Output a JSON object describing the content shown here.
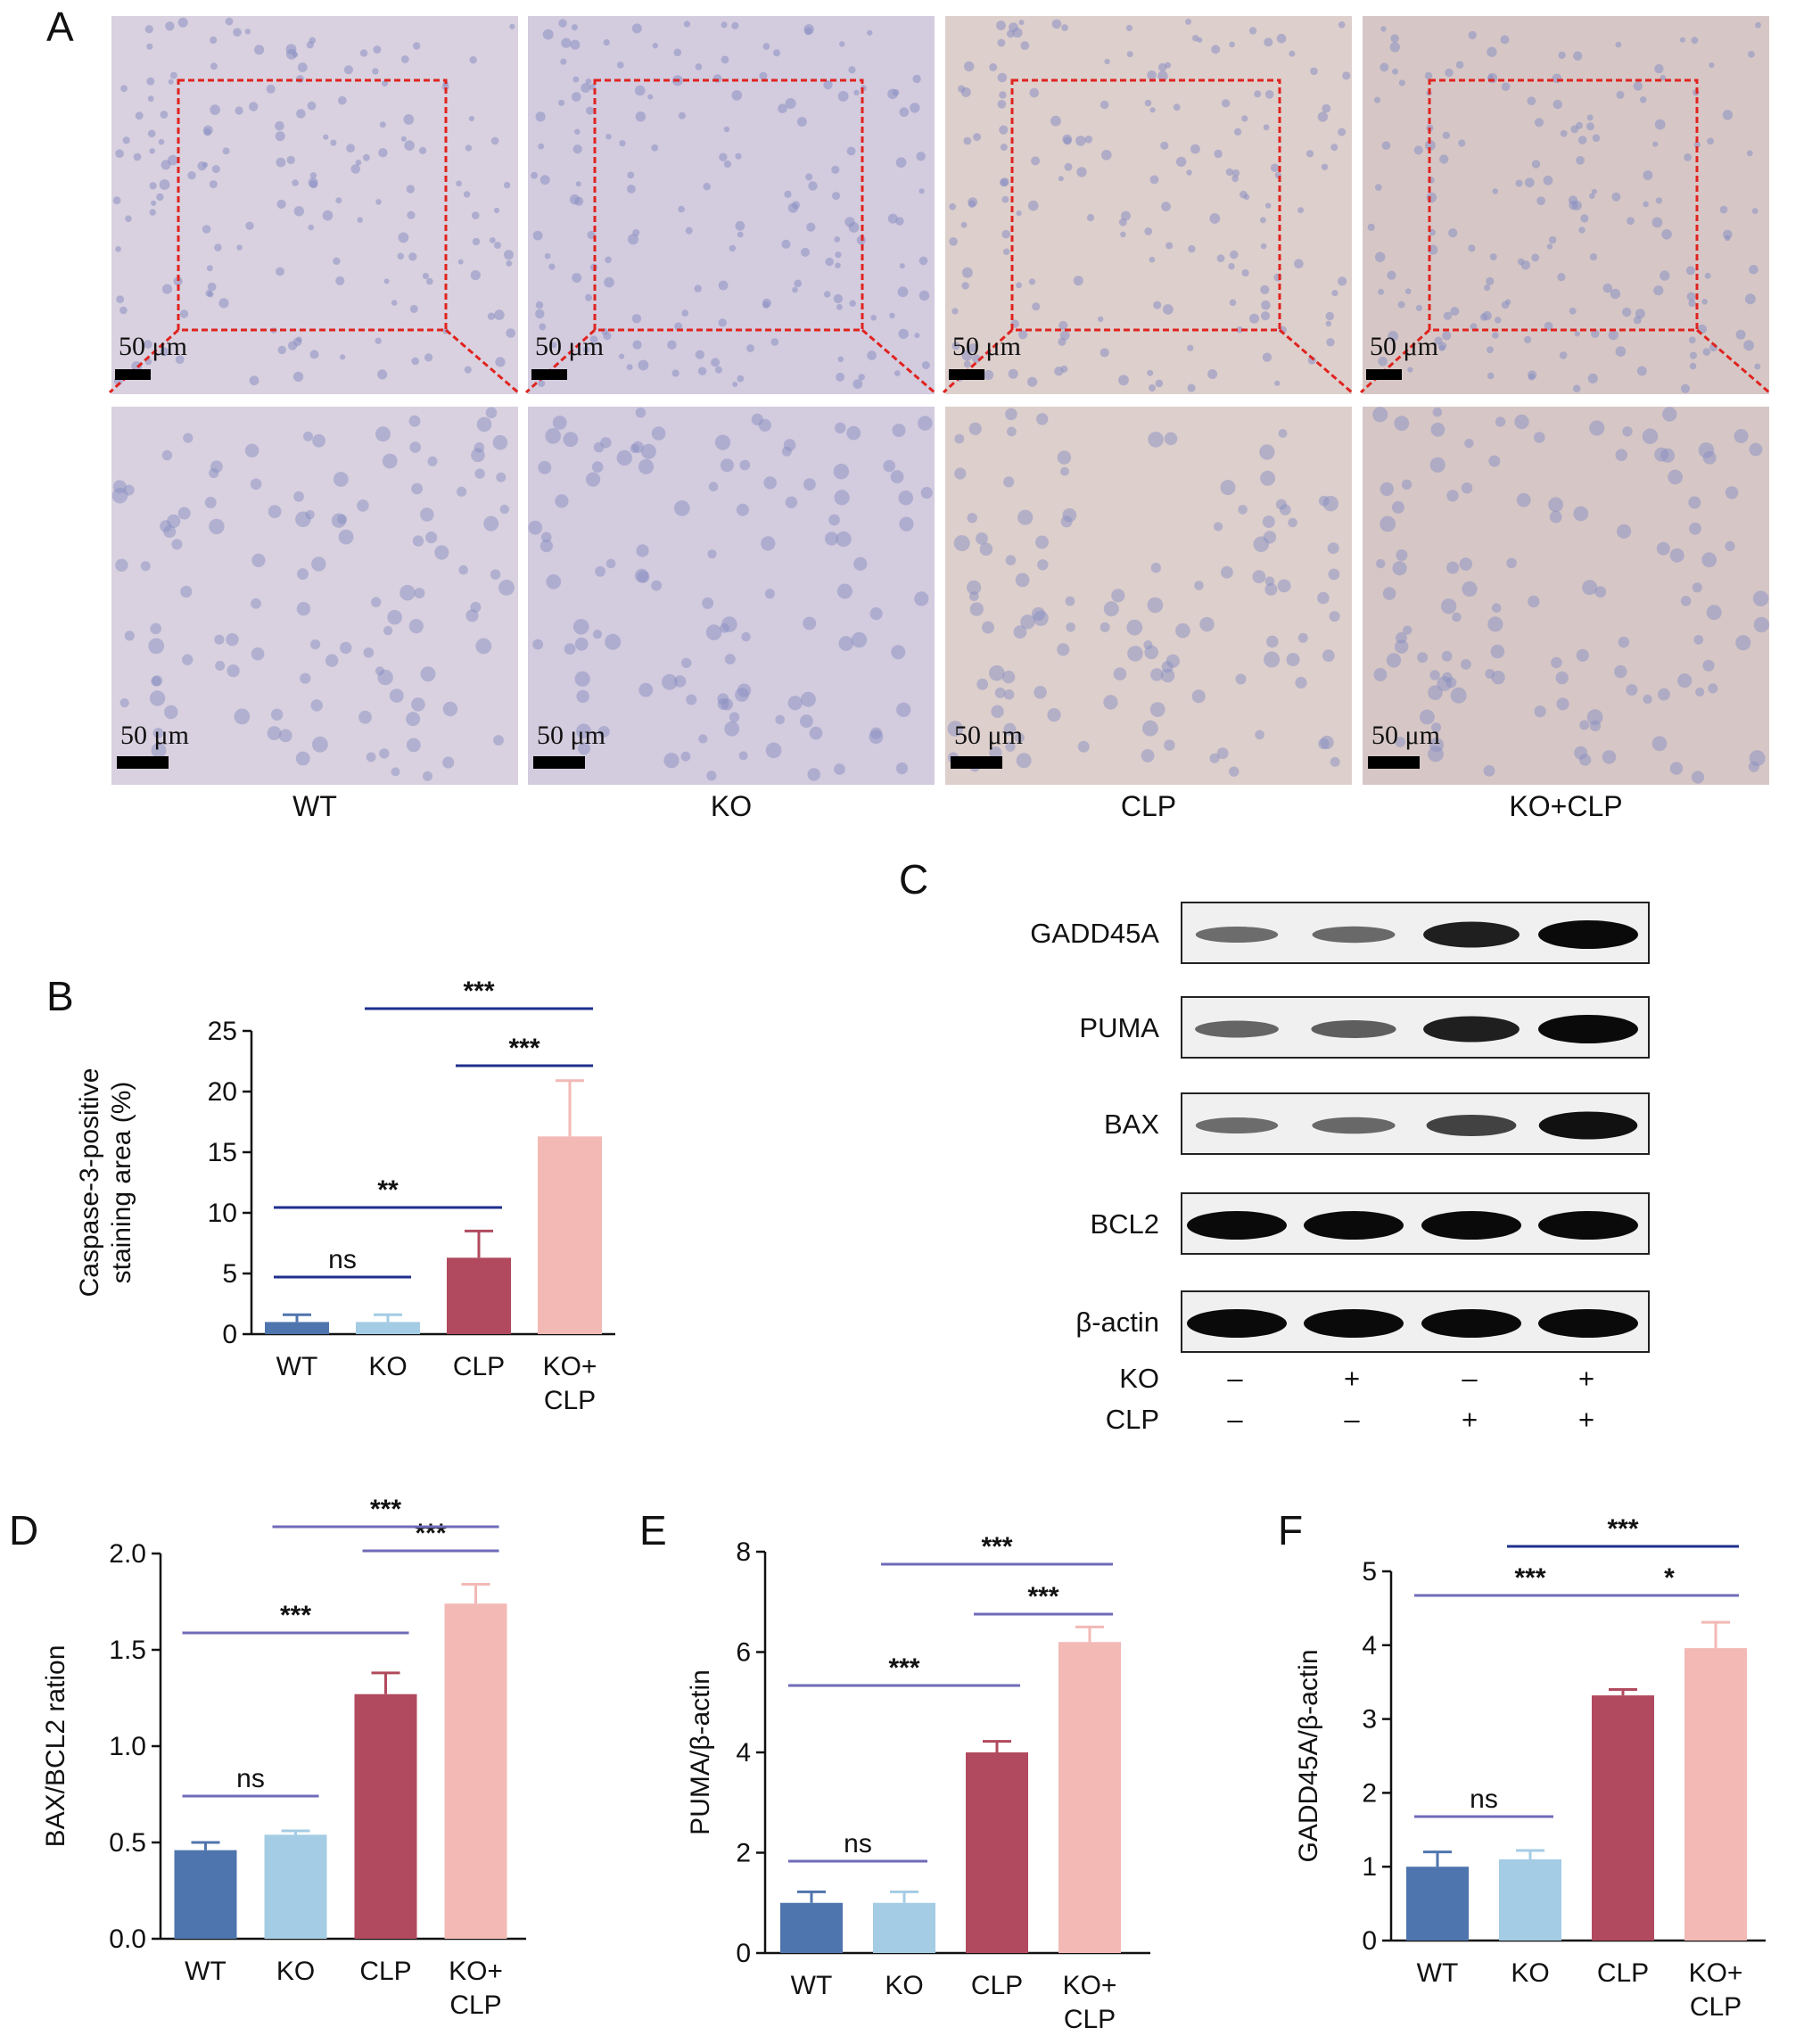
{
  "panel_a": {
    "label": "A",
    "scale_bar_text": "50 μm",
    "groups": [
      "WT",
      "KO",
      "CLP",
      "KO+CLP"
    ],
    "tissue_colors": [
      "#d9d1df",
      "#d3cbde",
      "#ddcfcc",
      "#d6c7c6"
    ]
  },
  "panel_c": {
    "label": "C",
    "rows": [
      {
        "name": "GADD45A",
        "intensity": [
          0.3,
          0.32,
          0.85,
          1.0
        ]
      },
      {
        "name": "PUMA",
        "intensity": [
          0.35,
          0.4,
          0.85,
          1.0
        ]
      },
      {
        "name": "BAX",
        "intensity": [
          0.3,
          0.33,
          0.6,
          0.95
        ]
      },
      {
        "name": "BCL2",
        "intensity": [
          1.0,
          1.0,
          1.0,
          1.0
        ]
      },
      {
        "name": "β-actin",
        "intensity": [
          1.0,
          1.0,
          1.0,
          1.0
        ]
      }
    ],
    "conditions": [
      {
        "name": "KO",
        "values": [
          "–",
          "+",
          "–",
          "+"
        ]
      },
      {
        "name": "CLP",
        "values": [
          "–",
          "–",
          "+",
          "+"
        ]
      }
    ]
  },
  "chart_data": [
    {
      "panel": "B",
      "type": "bar",
      "categories": [
        "WT",
        "KO",
        "CLP",
        "KO+\nCLP"
      ],
      "values": [
        1.0,
        1.0,
        6.3,
        16.3
      ],
      "errors": [
        0.6,
        0.6,
        2.2,
        4.6
      ],
      "ylabel": "Caspase-3-positive\nstaining area (%)",
      "ylim": [
        0,
        25
      ],
      "yticks": [
        "0",
        "5",
        "10",
        "15",
        "20",
        "25"
      ],
      "colors": [
        "#4f75ae",
        "#a4cce4",
        "#b14a5e",
        "#f2b9b5"
      ],
      "comparisons": [
        {
          "from": 0,
          "to": 1,
          "text": "ns"
        },
        {
          "from": 0,
          "to": 2,
          "text": "**"
        },
        {
          "from": 2,
          "to": 3,
          "text": "***"
        },
        {
          "from": 1,
          "to": 3,
          "text": "***"
        }
      ]
    },
    {
      "panel": "D",
      "type": "bar",
      "categories": [
        "WT",
        "KO",
        "CLP",
        "KO+\nCLP"
      ],
      "values": [
        0.46,
        0.54,
        1.27,
        1.74
      ],
      "errors": [
        0.04,
        0.02,
        0.11,
        0.1
      ],
      "ylabel": "BAX/BCL2 ration",
      "ylim": [
        0,
        2.0
      ],
      "yticks": [
        "0.0",
        "0.5",
        "1.0",
        "1.5",
        "2.0"
      ],
      "colors": [
        "#4f75ae",
        "#a4cce4",
        "#b14a5e",
        "#f2b9b5"
      ],
      "comparisons": [
        {
          "from": 0,
          "to": 1,
          "text": "ns"
        },
        {
          "from": 0,
          "to": 2,
          "text": "***"
        },
        {
          "from": 2,
          "to": 3,
          "text": "***"
        },
        {
          "from": 1,
          "to": 3,
          "text": "***"
        }
      ]
    },
    {
      "panel": "E",
      "type": "bar",
      "categories": [
        "WT",
        "KO",
        "CLP",
        "KO+\nCLP"
      ],
      "values": [
        1.0,
        1.0,
        4.0,
        6.2
      ],
      "errors": [
        0.22,
        0.22,
        0.22,
        0.3
      ],
      "ylabel": "PUMA/β-actin",
      "ylim": [
        0,
        8
      ],
      "yticks": [
        "0",
        "2",
        "4",
        "6",
        "8"
      ],
      "colors": [
        "#4f75ae",
        "#a4cce4",
        "#b14a5e",
        "#f2b9b5"
      ],
      "comparisons": [
        {
          "from": 0,
          "to": 1,
          "text": "ns"
        },
        {
          "from": 0,
          "to": 2,
          "text": "***"
        },
        {
          "from": 2,
          "to": 3,
          "text": "***"
        },
        {
          "from": 1,
          "to": 3,
          "text": "***"
        }
      ]
    },
    {
      "panel": "F",
      "type": "bar",
      "categories": [
        "WT",
        "KO",
        "CLP",
        "KO+\nCLP"
      ],
      "values": [
        1.0,
        1.1,
        3.32,
        3.96
      ],
      "errors": [
        0.2,
        0.12,
        0.08,
        0.35
      ],
      "ylabel": "GADD45A/β-actin",
      "ylim": [
        0,
        5
      ],
      "yticks": [
        "0",
        "1",
        "2",
        "3",
        "4",
        "5"
      ],
      "colors": [
        "#4f75ae",
        "#a4cce4",
        "#b14a5e",
        "#f2b9b5"
      ],
      "comparisons": [
        {
          "from": 0,
          "to": 1,
          "text": "ns"
        },
        {
          "from": 0,
          "to": 2,
          "text": "***"
        },
        {
          "from": 2,
          "to": 3,
          "text": "*"
        },
        {
          "from": 1,
          "to": 3,
          "text": "***"
        }
      ]
    }
  ]
}
